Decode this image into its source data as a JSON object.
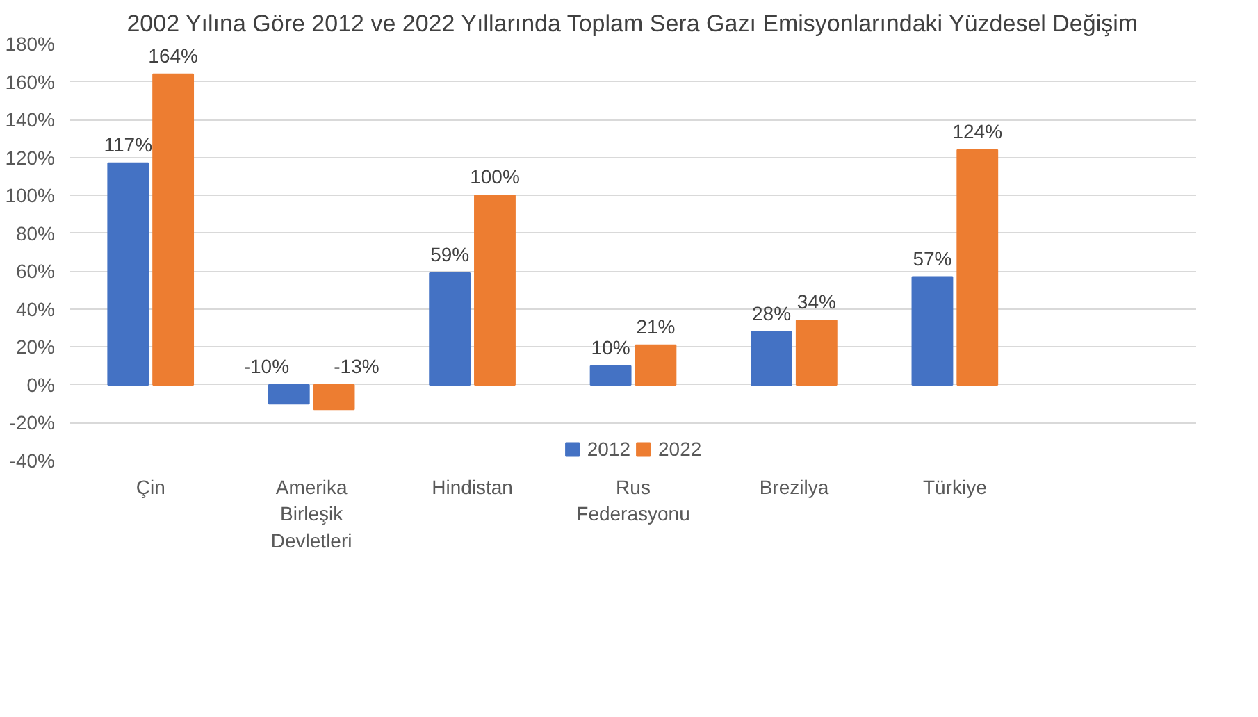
{
  "chart_data": {
    "type": "bar",
    "title": "2002 Yılına Göre 2012 ve 2022 Yıllarında Toplam Sera Gazı Emisyonlarındaki Yüzdesel Değişim",
    "categories": [
      "Çin",
      "Amerika Birleşik Devletleri",
      "Hindistan",
      "Rus Federasyonu",
      "Brezilya",
      "Türkiye",
      null
    ],
    "series": [
      {
        "name": "2012",
        "color": "#4472c4",
        "values": [
          117,
          -10,
          59,
          10,
          28,
          57,
          null
        ],
        "value_labels": [
          "117%",
          "-10%",
          "59%",
          "10%",
          "28%",
          "57%",
          null
        ]
      },
      {
        "name": "2022",
        "color": "#ed7d31",
        "values": [
          164,
          -13,
          100,
          21,
          34,
          124,
          null
        ],
        "value_labels": [
          "164%",
          "-13%",
          "100%",
          "21%",
          "34%",
          "124%",
          null
        ]
      }
    ],
    "ylim": [
      -40,
      180
    ],
    "yticks": [
      {
        "value": -40,
        "label": "-40%"
      },
      {
        "value": -20,
        "label": "-20%"
      },
      {
        "value": 0,
        "label": "0%"
      },
      {
        "value": 20,
        "label": "20%"
      },
      {
        "value": 40,
        "label": "40%"
      },
      {
        "value": 60,
        "label": "60%"
      },
      {
        "value": 80,
        "label": "80%"
      },
      {
        "value": 100,
        "label": "100%"
      },
      {
        "value": 120,
        "label": "120%"
      },
      {
        "value": 140,
        "label": "140%"
      },
      {
        "value": 160,
        "label": "160%"
      },
      {
        "value": 180,
        "label": "180%"
      }
    ],
    "grid": "y",
    "legend": "bottom"
  }
}
